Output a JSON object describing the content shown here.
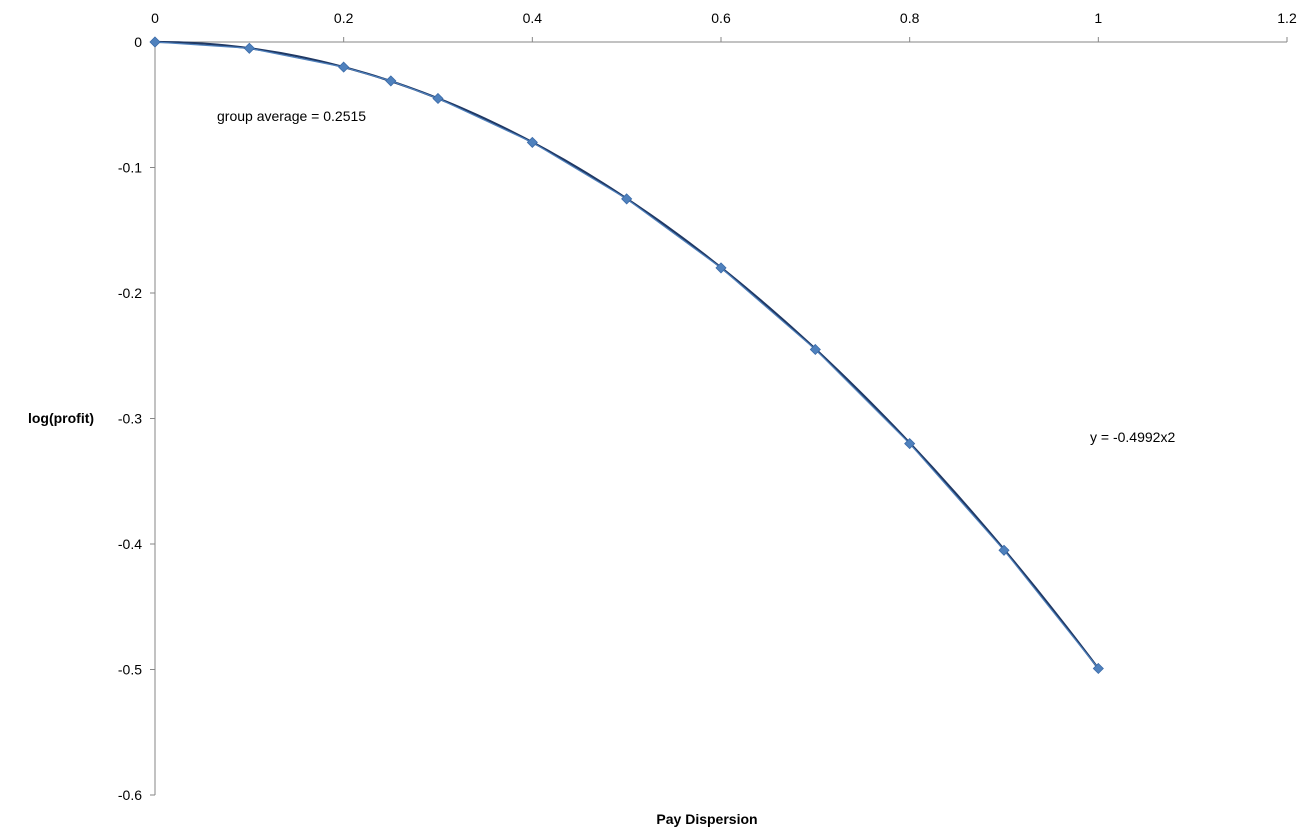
{
  "chart_data": {
    "type": "scatter",
    "title": "",
    "xlabel": "Pay Dispersion",
    "ylabel": "log(profit)",
    "xlim": [
      0,
      1.2
    ],
    "ylim": [
      -0.6,
      0
    ],
    "x_ticks": [
      "0",
      "0.2",
      "0.4",
      "0.6",
      "0.8",
      "1",
      "1.2"
    ],
    "y_ticks": [
      "0",
      "-0.1",
      "-0.2",
      "-0.3",
      "-0.4",
      "-0.5",
      "-0.6"
    ],
    "x_tick_values": [
      0,
      0.2,
      0.4,
      0.6,
      0.8,
      1,
      1.2
    ],
    "y_tick_values": [
      0,
      -0.1,
      -0.2,
      -0.3,
      -0.4,
      -0.5,
      -0.6
    ],
    "x_axis_position": "top",
    "grid": false,
    "legend": "none",
    "series": [
      {
        "marker": "diamond",
        "color": "#4F81BD",
        "x": [
          0,
          0.1,
          0.2,
          0.25,
          0.3,
          0.4,
          0.5,
          0.6,
          0.7,
          0.8,
          0.9,
          1.0
        ],
        "y": [
          0,
          -0.005,
          -0.02,
          -0.031,
          -0.045,
          -0.08,
          -0.125,
          -0.18,
          -0.245,
          -0.32,
          -0.405,
          -0.4992
        ]
      }
    ],
    "trendline": {
      "type": "polynomial",
      "coefficient_x2": -0.4992,
      "x_range": [
        0,
        1.0
      ],
      "color": "#1F3864",
      "equation_label": "y = -0.4992x2"
    },
    "annotations": [
      {
        "text": "group average = 0.2515"
      },
      {
        "text": "y = -0.4992x2"
      }
    ]
  }
}
